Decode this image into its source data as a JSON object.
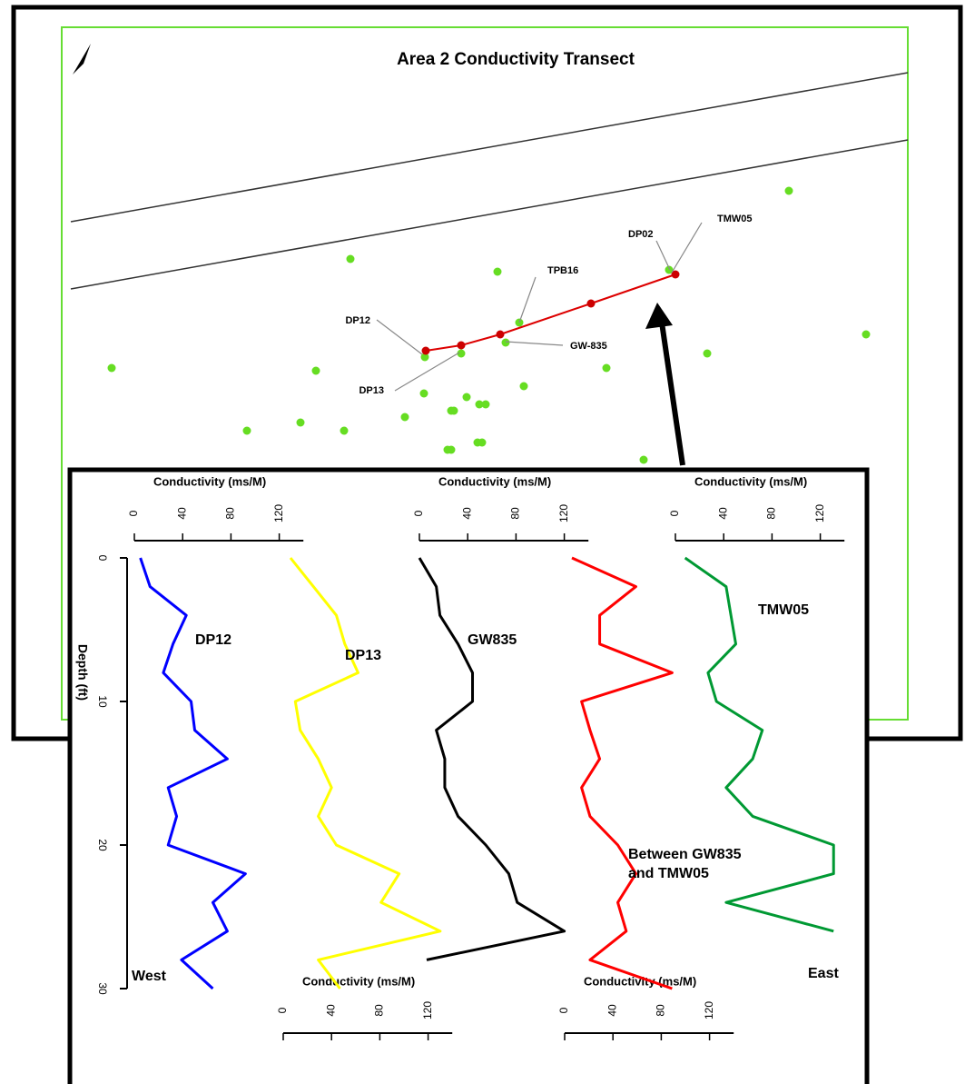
{
  "map": {
    "title": "Area 2 Conductivity Transect",
    "labels": [
      "DP02",
      "TMW05",
      "TPB16",
      "DP12",
      "GW-835",
      "DP13"
    ]
  },
  "chart_data": {
    "type": "line",
    "y_label": "Depth (ft)",
    "left_label": "West",
    "right_label": "East",
    "ylim": [
      0,
      30
    ],
    "yticks": [
      0,
      10,
      20,
      30
    ],
    "xlim": [
      0,
      140
    ],
    "xticks": [
      0,
      40,
      80,
      120
    ],
    "depth": [
      0,
      2,
      4,
      6,
      8,
      10,
      12,
      14,
      16,
      18,
      20,
      22,
      24,
      26,
      28,
      30
    ],
    "series": [
      {
        "name": "DP12",
        "color": "#0000ff",
        "axis_title": "Conductivity (ms/M)",
        "axis": "top",
        "values": [
          5,
          13,
          43,
          32,
          24,
          47,
          50,
          77,
          28,
          35,
          28,
          92,
          65,
          77,
          39,
          65
        ]
      },
      {
        "name": "DP13",
        "color": "#ffff00",
        "axis_title": "Conductivity (ms/M)",
        "axis": "bottom",
        "values": [
          6,
          25,
          44,
          51,
          62,
          10,
          14,
          29,
          40,
          29,
          44,
          96,
          81,
          130,
          29,
          47
        ]
      },
      {
        "name": "GW835",
        "color": "#000000",
        "axis_title": "Conductivity (ms/M)",
        "axis": "top",
        "values": [
          0,
          14,
          17,
          32,
          44,
          44,
          14,
          21,
          21,
          32,
          55,
          74,
          81,
          120,
          6,
          null
        ]
      },
      {
        "name": "Between GW835 and TMW05",
        "color": "#ff0000",
        "axis_title": "Conductivity (ms/M)",
        "axis": "bottom",
        "values": [
          6,
          59,
          29,
          29,
          89,
          14,
          21,
          29,
          14,
          21,
          44,
          59,
          44,
          51,
          21,
          89
        ]
      },
      {
        "name": "TMW05",
        "color": "#009933",
        "axis_title": "Conductivity (ms/M)",
        "axis": "top",
        "values": [
          8,
          42,
          46,
          50,
          27,
          34,
          72,
          64,
          42,
          64,
          131,
          131,
          42,
          131,
          null,
          null
        ]
      }
    ]
  }
}
